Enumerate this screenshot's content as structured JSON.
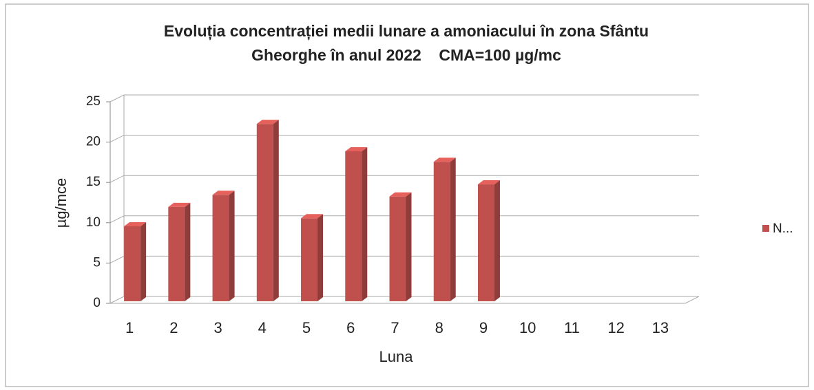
{
  "chart_data": {
    "type": "bar3d",
    "title": [
      "Evoluția concentrației medii lunare a amoniacului în zona Sfântu",
      "Gheorghe în anul 2022    CMA=100 µg/mc"
    ],
    "x_label": "Luna",
    "y_label": "µg/mce",
    "categories": [
      1,
      2,
      3,
      4,
      5,
      6,
      7,
      8,
      9,
      10,
      11,
      12,
      13
    ],
    "series": [
      {
        "name": "N...",
        "color": "#c0504d",
        "values": [
          9.3,
          11.7,
          13.2,
          22,
          10.3,
          18.6,
          13,
          17.3,
          14.5,
          null,
          null,
          null,
          null
        ]
      }
    ],
    "ylim": [
      0,
      25
    ],
    "yticks": [
      0,
      5,
      10,
      15,
      20,
      25
    ],
    "grid": true,
    "legend": "right"
  }
}
